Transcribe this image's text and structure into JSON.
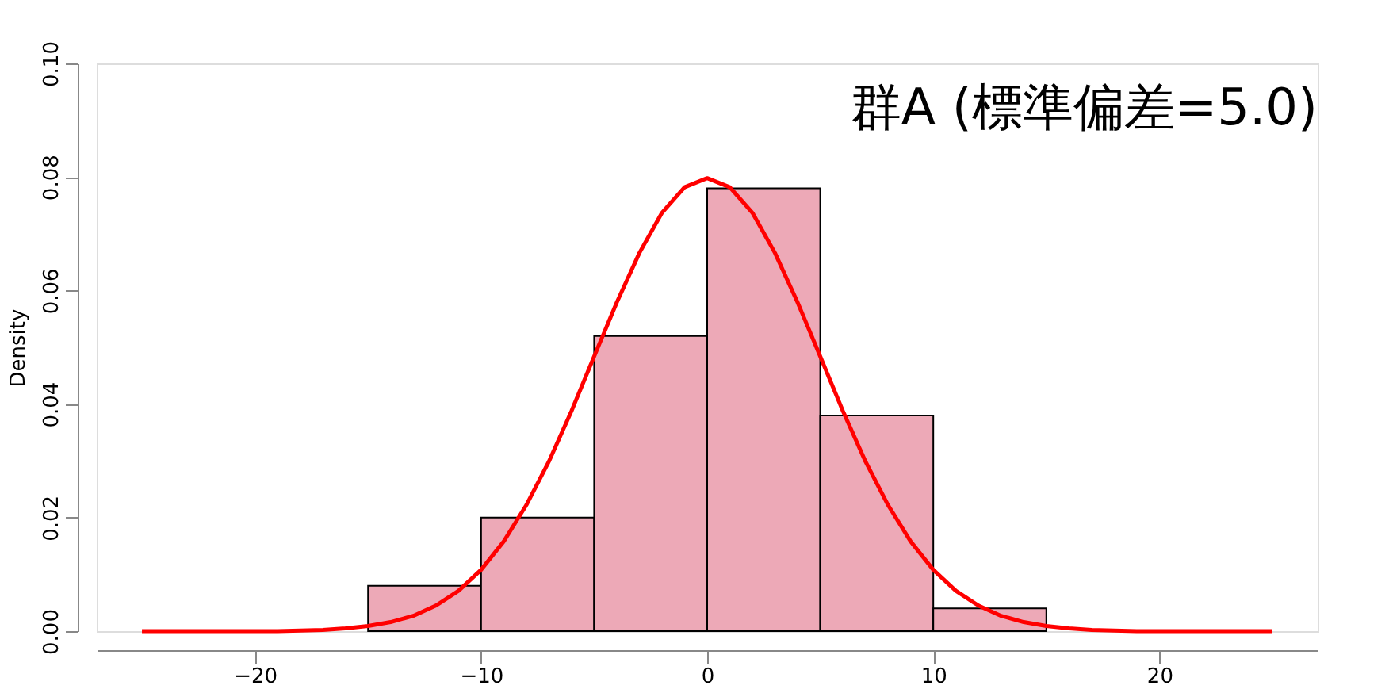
{
  "chart_data": {
    "type": "histogram",
    "title": "群A (標準偏差=5.0)",
    "ylabel": "Density",
    "bins": [
      -15,
      -10,
      -5,
      0,
      5,
      10,
      15
    ],
    "values": [
      0.008,
      0.02,
      0.052,
      0.078,
      0.038,
      0.004
    ],
    "color": "#eda9b7",
    "series": [
      {
        "type": "line",
        "color": "#ff0000",
        "line_style": "solid",
        "x": [
          -25,
          -24,
          -23,
          -22,
          -21,
          -20,
          -19,
          -18,
          -17,
          -16,
          -15,
          -14,
          -13,
          -12,
          -11,
          -10,
          -9,
          -8,
          -7,
          -6,
          -5,
          -4,
          -3,
          -2,
          -1,
          0,
          1,
          2,
          3,
          4,
          5,
          6,
          7,
          8,
          9,
          10,
          11,
          12,
          13,
          14,
          15,
          16,
          17,
          18,
          19,
          20,
          21,
          22,
          23,
          24,
          25
        ],
        "values": [
          0,
          0,
          0,
          0,
          0,
          0,
          0,
          0.0001,
          0.0002,
          0.0005,
          0.0009,
          0.0016,
          0.0027,
          0.0045,
          0.0071,
          0.0108,
          0.0158,
          0.0222,
          0.0299,
          0.0388,
          0.0484,
          0.0579,
          0.0666,
          0.0737,
          0.0782,
          0.0798,
          0.0782,
          0.0737,
          0.0666,
          0.0579,
          0.0484,
          0.0388,
          0.0299,
          0.0222,
          0.0158,
          0.0108,
          0.0071,
          0.0045,
          0.0027,
          0.0016,
          0.0009,
          0.0005,
          0.0002,
          0.0001,
          0,
          0,
          0,
          0,
          0,
          0,
          0
        ]
      }
    ],
    "xlim": [
      -27,
      27
    ],
    "ylim": [
      0,
      0.1
    ],
    "xticks": [
      -20,
      -10,
      0,
      10,
      20
    ],
    "yticks": [
      {
        "value": 0,
        "label": "0.00"
      },
      0.02,
      0.04,
      0.06,
      0.08,
      {
        "value": 0.1,
        "label": "0.10"
      }
    ],
    "grid": false,
    "legend": false
  }
}
